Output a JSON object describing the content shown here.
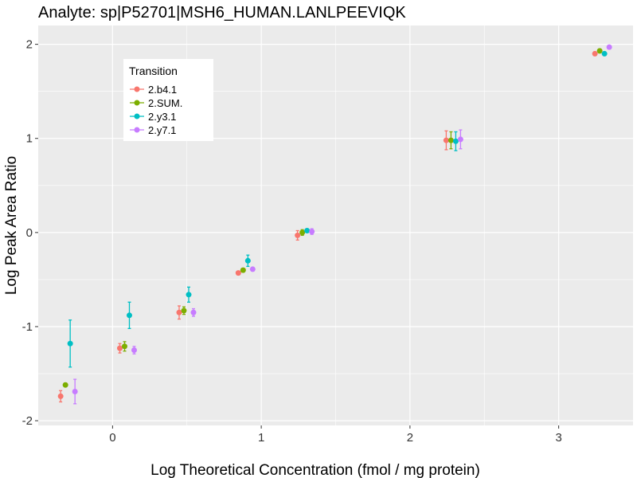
{
  "chart_data": {
    "type": "scatter",
    "title": "Analyte: sp|P52701|MSH6_HUMAN.LANLPEEVIQK",
    "xlabel": "Log Theoretical Concentration (fmol / mg protein)",
    "ylabel": "Log Peak Area Ratio",
    "xlim": [
      -0.5,
      3.5
    ],
    "ylim": [
      -2.05,
      2.2
    ],
    "x_ticks": [
      0,
      1,
      2,
      3
    ],
    "x_tick_labels": [
      "0",
      "1",
      "2",
      "3"
    ],
    "y_ticks": [
      -2,
      -1,
      0,
      1,
      2
    ],
    "y_tick_labels": [
      "-2",
      "-1",
      "0",
      "1",
      "2"
    ],
    "grid": true,
    "legend": {
      "title": "Transition",
      "position": "top-left"
    },
    "series": [
      {
        "name": "2.b4.1",
        "color": "#F8766D",
        "points": [
          {
            "x": -0.301,
            "y": -1.74,
            "err": 0.06
          },
          {
            "x": 0.097,
            "y": -1.23,
            "err": 0.05
          },
          {
            "x": 0.496,
            "y": -0.85,
            "err": 0.07
          },
          {
            "x": 0.894,
            "y": -0.43,
            "err": 0.02
          },
          {
            "x": 1.292,
            "y": -0.03,
            "err": 0.05
          },
          {
            "x": 2.292,
            "y": 0.98,
            "err": 0.1
          },
          {
            "x": 3.292,
            "y": 1.9,
            "err": 0.02
          }
        ]
      },
      {
        "name": "2.SUM.",
        "color": "#7CAE00",
        "points": [
          {
            "x": -0.301,
            "y": -1.62,
            "err": 0.02
          },
          {
            "x": 0.097,
            "y": -1.21,
            "err": 0.05
          },
          {
            "x": 0.496,
            "y": -0.83,
            "err": 0.04
          },
          {
            "x": 0.894,
            "y": -0.4,
            "err": 0.02
          },
          {
            "x": 1.292,
            "y": 0.0,
            "err": 0.03
          },
          {
            "x": 2.292,
            "y": 0.98,
            "err": 0.09
          },
          {
            "x": 3.292,
            "y": 1.93,
            "err": 0.02
          }
        ]
      },
      {
        "name": "2.y3.1",
        "color": "#00BFC4",
        "points": [
          {
            "x": -0.301,
            "y": -1.18,
            "err": 0.25
          },
          {
            "x": 0.097,
            "y": -0.88,
            "err": 0.14
          },
          {
            "x": 0.496,
            "y": -0.66,
            "err": 0.08
          },
          {
            "x": 0.894,
            "y": -0.3,
            "err": 0.06
          },
          {
            "x": 1.292,
            "y": 0.02,
            "err": 0.02
          },
          {
            "x": 2.292,
            "y": 0.97,
            "err": 0.1
          },
          {
            "x": 3.292,
            "y": 1.9,
            "err": 0.02
          }
        ]
      },
      {
        "name": "2.y7.1",
        "color": "#C77CFF",
        "points": [
          {
            "x": -0.301,
            "y": -1.69,
            "err": 0.13
          },
          {
            "x": 0.097,
            "y": -1.25,
            "err": 0.04
          },
          {
            "x": 0.496,
            "y": -0.85,
            "err": 0.04
          },
          {
            "x": 0.894,
            "y": -0.39,
            "err": 0.02
          },
          {
            "x": 1.292,
            "y": 0.01,
            "err": 0.03
          },
          {
            "x": 2.292,
            "y": 0.99,
            "err": 0.1
          },
          {
            "x": 3.292,
            "y": 1.97,
            "err": 0.02
          }
        ]
      }
    ]
  }
}
